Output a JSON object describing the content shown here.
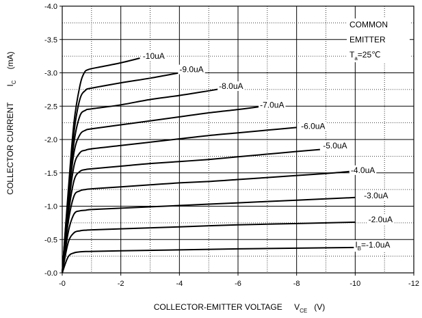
{
  "chart_data": {
    "type": "line",
    "xlabel": "COLLECTOR-EMITTER VOLTAGE",
    "xlabel_symbol": "V",
    "xlabel_subscript": "CE",
    "xlabel_unit": "(V)",
    "ylabel": "COLLECTOR CURRENT",
    "ylabel_symbol": "I",
    "ylabel_subscript": "C",
    "ylabel_unit": "(mA)",
    "xlim": [
      0,
      -12
    ],
    "ylim": [
      0,
      -4.0
    ],
    "x_ticks": [
      0,
      -2,
      -4,
      -6,
      -8,
      -10,
      -12
    ],
    "x_tick_labels": [
      "-0",
      "-2",
      "-4",
      "-6",
      "-8",
      "-10",
      "-12"
    ],
    "y_ticks": [
      0,
      -0.5,
      -1.0,
      -1.5,
      -2.0,
      -2.5,
      -3.0,
      -3.5,
      -4.0
    ],
    "y_tick_labels": [
      "-0.0",
      "-0.5",
      "-1.0",
      "-1.5",
      "-2.0",
      "-2.5",
      "-3.0",
      "-3.5",
      "-4.0"
    ],
    "grid": true,
    "annotation": {
      "line1": "COMMON",
      "line2": "EMITTER",
      "line3_symbol": "T",
      "line3_subscript": "a",
      "line3_value": "=25℃"
    },
    "series": [
      {
        "name": "-10uA",
        "label_prefix": "",
        "label_subscript": "",
        "label_text": "-10uA",
        "label_x": -2.75,
        "label_y": -3.25,
        "x": [
          0,
          -0.2,
          -0.4,
          -0.6,
          -0.75,
          -0.9,
          -1.2,
          -2.0,
          -2.65
        ],
        "y": [
          0,
          -1.2,
          -2.25,
          -2.8,
          -3.0,
          -3.05,
          -3.08,
          -3.15,
          -3.22
        ]
      },
      {
        "name": "-9.0uA",
        "label_prefix": "",
        "label_subscript": "",
        "label_text": "-9.0uA",
        "label_x": -4.0,
        "label_y": -3.05,
        "x": [
          0,
          -0.2,
          -0.4,
          -0.6,
          -0.8,
          -1.0,
          -2.0,
          -3.0,
          -4.0
        ],
        "y": [
          0,
          -1.15,
          -2.1,
          -2.6,
          -2.74,
          -2.77,
          -2.85,
          -2.92,
          -3.0
        ]
      },
      {
        "name": "-8.0uA",
        "label_prefix": "",
        "label_subscript": "",
        "label_text": "-8.0uA",
        "label_x": -5.35,
        "label_y": -2.8,
        "x": [
          0,
          -0.2,
          -0.4,
          -0.6,
          -0.8,
          -1.0,
          -2.0,
          -3.0,
          -4.0,
          -5.0,
          -5.4
        ],
        "y": [
          0,
          -1.1,
          -1.95,
          -2.35,
          -2.44,
          -2.46,
          -2.52,
          -2.6,
          -2.66,
          -2.73,
          -2.76
        ]
      },
      {
        "name": "-7.0uA",
        "label_prefix": "",
        "label_subscript": "",
        "label_text": "-7.0uA",
        "label_x": -6.75,
        "label_y": -2.52,
        "x": [
          0,
          -0.2,
          -0.4,
          -0.6,
          -0.8,
          -1.0,
          -2.0,
          -3.0,
          -4.0,
          -5.0,
          -6.0,
          -6.7
        ],
        "y": [
          0,
          -1.05,
          -1.8,
          -2.07,
          -2.14,
          -2.16,
          -2.22,
          -2.28,
          -2.34,
          -2.4,
          -2.45,
          -2.49
        ]
      },
      {
        "name": "-6.0uA",
        "label_prefix": "",
        "label_subscript": "",
        "label_text": "-6.0uA",
        "label_x": -8.15,
        "label_y": -2.2,
        "x": [
          0,
          -0.2,
          -0.4,
          -0.6,
          -0.8,
          -1.0,
          -2.0,
          -3.0,
          -4.0,
          -5.0,
          -6.0,
          -7.0,
          -8.0
        ],
        "y": [
          0,
          -0.95,
          -1.6,
          -1.8,
          -1.84,
          -1.86,
          -1.91,
          -1.96,
          -2.01,
          -2.06,
          -2.1,
          -2.14,
          -2.18
        ]
      },
      {
        "name": "-5.0uA",
        "label_prefix": "",
        "label_subscript": "",
        "label_text": "-5.0uA",
        "label_x": -8.9,
        "label_y": -1.91,
        "x": [
          0,
          -0.2,
          -0.4,
          -0.6,
          -0.8,
          -1.0,
          -2.0,
          -3.0,
          -4.0,
          -5.0,
          -6.0,
          -7.0,
          -8.0,
          -8.8
        ],
        "y": [
          0,
          -0.85,
          -1.38,
          -1.52,
          -1.55,
          -1.56,
          -1.6,
          -1.64,
          -1.67,
          -1.7,
          -1.74,
          -1.78,
          -1.82,
          -1.85
        ]
      },
      {
        "name": "-4.0uA",
        "label_prefix": "",
        "label_subscript": "",
        "label_text": "-4.0uA",
        "label_x": -9.85,
        "label_y": -1.54,
        "x": [
          0,
          -0.2,
          -0.4,
          -0.6,
          -0.8,
          -1.0,
          -2.0,
          -3.0,
          -4.0,
          -5.0,
          -6.0,
          -7.0,
          -8.0,
          -9.0,
          -9.8
        ],
        "y": [
          0,
          -0.75,
          -1.15,
          -1.23,
          -1.25,
          -1.26,
          -1.29,
          -1.32,
          -1.35,
          -1.37,
          -1.4,
          -1.43,
          -1.46,
          -1.49,
          -1.52
        ]
      },
      {
        "name": "-3.0uA",
        "label_prefix": "",
        "label_subscript": "",
        "label_text": "-3.0uA",
        "label_x": -10.3,
        "label_y": -1.16,
        "x": [
          0,
          -0.2,
          -0.4,
          -0.6,
          -0.8,
          -1.0,
          -2.0,
          -4.0,
          -6.0,
          -8.0,
          -10.0
        ],
        "y": [
          0,
          -0.6,
          -0.88,
          -0.93,
          -0.94,
          -0.95,
          -0.97,
          -1.01,
          -1.05,
          -1.09,
          -1.13
        ]
      },
      {
        "name": "-2.0uA",
        "label_prefix": "",
        "label_subscript": "",
        "label_text": "-2.0uA",
        "label_x": -10.45,
        "label_y": -0.8,
        "x": [
          0,
          -0.2,
          -0.4,
          -0.6,
          -0.8,
          -1.0,
          -2.0,
          -4.0,
          -6.0,
          -8.0,
          -10.0
        ],
        "y": [
          0,
          -0.45,
          -0.6,
          -0.63,
          -0.64,
          -0.645,
          -0.66,
          -0.69,
          -0.72,
          -0.74,
          -0.76
        ]
      },
      {
        "name": "-1.0uA",
        "label_prefix": "I",
        "label_subscript": "B",
        "label_text": "=-1.0uA",
        "label_x": -10.0,
        "label_y": -0.42,
        "x": [
          0,
          -0.2,
          -0.4,
          -0.6,
          -0.8,
          -1.0,
          -2.0,
          -4.0,
          -6.0,
          -8.0,
          -10.0
        ],
        "y": [
          0,
          -0.24,
          -0.3,
          -0.315,
          -0.32,
          -0.322,
          -0.33,
          -0.345,
          -0.36,
          -0.37,
          -0.38
        ]
      }
    ]
  }
}
